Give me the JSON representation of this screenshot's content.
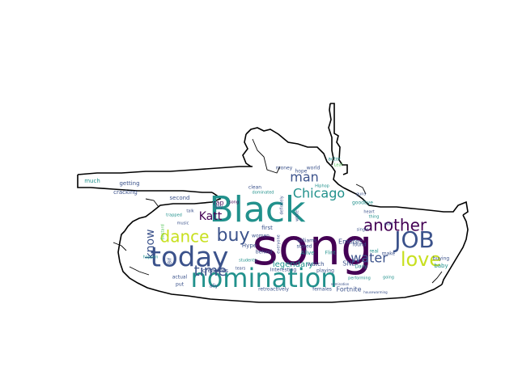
{
  "colors": {
    "outline": "#000000",
    "background": "#ffffff",
    "palette": [
      "#440154",
      "#3b528b",
      "#21918c",
      "#5ec962",
      "#fde725"
    ]
  },
  "words": [
    {
      "text": "song",
      "weight": 100,
      "color": "#440154"
    },
    {
      "text": "Black",
      "weight": 78,
      "color": "#21918c"
    },
    {
      "text": "nomination",
      "weight": 62,
      "color": "#21918c"
    },
    {
      "text": "today",
      "weight": 56,
      "color": "#3b528b"
    },
    {
      "text": "JOB",
      "weight": 48,
      "color": "#3b528b"
    },
    {
      "text": "love",
      "weight": 42,
      "color": "#c8e020"
    },
    {
      "text": "dance",
      "weight": 40,
      "color": "#c8e020"
    },
    {
      "text": "buy",
      "weight": 36,
      "color": "#3b528b"
    },
    {
      "text": "another",
      "weight": 30,
      "color": "#440154"
    },
    {
      "text": "man",
      "weight": 28,
      "color": "#3b528b"
    },
    {
      "text": "time",
      "weight": 26,
      "color": "#3b528b"
    },
    {
      "text": "water",
      "weight": 24,
      "color": "#3b528b"
    },
    {
      "text": "know",
      "weight": 24,
      "color": "#3b528b"
    },
    {
      "text": "Chicago",
      "weight": 22,
      "color": "#21918c"
    },
    {
      "text": "Katt",
      "weight": 22,
      "color": "#440154"
    },
    {
      "text": "legendary",
      "weight": 18,
      "color": "#21918c"
    },
    {
      "text": "Emotes",
      "weight": 12,
      "color": "#3b528b"
    },
    {
      "text": "SNL",
      "weight": 12,
      "color": "#3b528b"
    },
    {
      "text": "Fortnite",
      "weight": 12,
      "color": "#3b528b"
    },
    {
      "text": "rap",
      "weight": 12,
      "color": "#440154"
    },
    {
      "text": "second",
      "weight": 11,
      "color": "#3b528b"
    },
    {
      "text": "creatives",
      "weight": 10,
      "color": "#3b528b"
    },
    {
      "text": "Hype",
      "weight": 11,
      "color": "#3b528b"
    },
    {
      "text": "watch",
      "weight": 11,
      "color": "#3b528b"
    },
    {
      "text": "females",
      "weight": 10,
      "color": "#3b528b"
    },
    {
      "text": "Interesting",
      "weight": 10,
      "color": "#3b528b"
    },
    {
      "text": "playing",
      "weight": 10,
      "color": "#3b528b"
    },
    {
      "text": "buying",
      "weight": 9,
      "color": "#3b528b"
    },
    {
      "text": "baby",
      "weight": 10,
      "color": "#21918c"
    },
    {
      "text": "real",
      "weight": 9,
      "color": "#21918c"
    },
    {
      "text": "make",
      "weight": 9,
      "color": "#3b528b"
    },
    {
      "text": "cracking",
      "weight": 10,
      "color": "#3b528b"
    },
    {
      "text": "getting",
      "weight": 9,
      "color": "#3b528b"
    },
    {
      "text": "much",
      "weight": 9,
      "color": "#21918c"
    },
    {
      "text": "actual",
      "weight": 9,
      "color": "#3b528b"
    },
    {
      "text": "put",
      "weight": 9,
      "color": "#3b528b"
    },
    {
      "text": "retroactively",
      "weight": 9,
      "color": "#3b528b"
    },
    {
      "text": "found",
      "weight": 9,
      "color": "#3b528b"
    },
    {
      "text": "first",
      "weight": 10,
      "color": "#3b528b"
    },
    {
      "text": "behind",
      "weight": 9,
      "color": "#3b528b"
    },
    {
      "text": "Alive",
      "weight": 10,
      "color": "#21918c"
    },
    {
      "text": "Flint",
      "weight": 9,
      "color": "#21918c"
    },
    {
      "text": "stored",
      "weight": 9,
      "color": "#3b528b"
    },
    {
      "text": "williams",
      "weight": 9,
      "color": "#3b528b"
    },
    {
      "text": "women",
      "weight": 9,
      "color": "#3b528b"
    },
    {
      "text": "clean",
      "weight": 9,
      "color": "#3b528b"
    },
    {
      "text": "dominated",
      "weight": 8,
      "color": "#21918c"
    },
    {
      "text": "money",
      "weight": 9,
      "color": "#3b528b"
    },
    {
      "text": "hope",
      "weight": 9,
      "color": "#3b528b"
    },
    {
      "text": "actor",
      "weight": 9,
      "color": "#21918c"
    },
    {
      "text": "Leaf",
      "weight": 8,
      "color": "#5ec962"
    },
    {
      "text": "goodbye",
      "weight": 8,
      "color": "#21918c"
    },
    {
      "text": "day",
      "weight": 8,
      "color": "#3b528b"
    },
    {
      "text": "Bif",
      "weight": 8,
      "color": "#3b528b"
    },
    {
      "text": "Daily",
      "weight": 8,
      "color": "#21918c"
    },
    {
      "text": "ally",
      "weight": 8,
      "color": "#3b528b"
    },
    {
      "text": "everyone",
      "weight": 7,
      "color": "#3b528b"
    },
    {
      "text": "white",
      "weight": 7,
      "color": "#3b528b"
    },
    {
      "text": "Bastard",
      "weight": 7,
      "color": "#5ec962"
    },
    {
      "text": "happen",
      "weight": 7,
      "color": "#21918c"
    },
    {
      "text": "glad",
      "weight": 7,
      "color": "#3b528b"
    },
    {
      "text": "definitely",
      "weight": 6,
      "color": "#3b528b"
    },
    {
      "text": "students",
      "weight": 6,
      "color": "#21918c"
    },
    {
      "text": "heart",
      "weight": 6,
      "color": "#3b528b"
    },
    {
      "text": "thing",
      "weight": 6,
      "color": "#21918c"
    },
    {
      "text": "single",
      "weight": 6,
      "color": "#3b528b"
    },
    {
      "text": "Hiphop",
      "weight": 6,
      "color": "#21918c"
    },
    {
      "text": "guns",
      "weight": 6,
      "color": "#3b528b"
    },
    {
      "text": "song",
      "weight": 6,
      "color": "#440154"
    },
    {
      "text": "tears",
      "weight": 6,
      "color": "#3b528b"
    },
    {
      "text": "talk",
      "weight": 6,
      "color": "#3b528b"
    },
    {
      "text": "world",
      "weight": 7,
      "color": "#3b528b"
    },
    {
      "text": "going",
      "weight": 6,
      "color": "#21918c"
    },
    {
      "text": "nomination",
      "weight": 6,
      "color": "#3b528b"
    },
    {
      "text": "performing",
      "weight": 6,
      "color": "#21918c"
    },
    {
      "text": "housewarming",
      "weight": 6,
      "color": "#3b528b"
    },
    {
      "text": "trapped",
      "weight": 6,
      "color": "#21918c"
    },
    {
      "text": "music",
      "weight": 6,
      "color": "#3b528b"
    }
  ]
}
